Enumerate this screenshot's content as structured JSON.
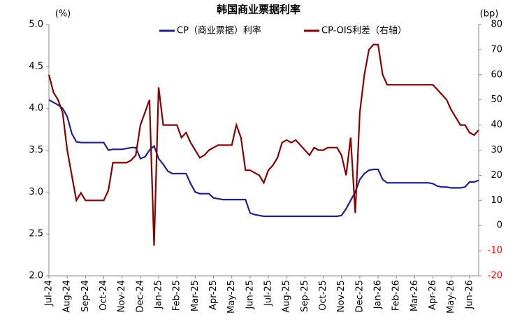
{
  "chart_data": {
    "type": "line",
    "title": "韩国商业票据利率",
    "y_unit": "(%)",
    "y2_unit": "(bp)",
    "x": [
      "Jul-24",
      null,
      null,
      null,
      "Aug-24",
      null,
      null,
      null,
      "Sep-24",
      null,
      null,
      null,
      "Oct-24",
      null,
      null,
      null,
      "Nov-24",
      null,
      null,
      null,
      "Dec-24",
      null,
      null,
      null,
      "Jan-25",
      null,
      null,
      null,
      "Feb-25",
      null,
      null,
      null,
      "Mar-25",
      null,
      null,
      null,
      "Apr-25",
      null,
      null,
      null,
      "May-25",
      null,
      null,
      null,
      "Jun-25",
      null,
      null,
      null,
      "Jul-25",
      null,
      null,
      null,
      "Aug-25",
      null,
      null,
      null,
      "Sep-25",
      null,
      null,
      null,
      "Oct-25",
      null,
      null,
      null,
      "Nov-25",
      null,
      null,
      null,
      "Dec-25",
      null,
      null,
      null,
      "Jan-26",
      null,
      null,
      null,
      "Feb-26",
      null,
      null,
      null,
      "Mar-26",
      null,
      null,
      null,
      "Apr-26",
      null,
      null,
      null,
      "May-26",
      null,
      null,
      null,
      "Jun-26",
      null,
      null
    ],
    "series": [
      {
        "name": "CP（商业票据）利率",
        "color": "#1f1f96",
        "axis": "y",
        "values": [
          4.1,
          4.07,
          4.04,
          4.0,
          3.9,
          3.7,
          3.6,
          3.59,
          3.59,
          3.59,
          3.59,
          3.59,
          3.59,
          3.5,
          3.51,
          3.51,
          3.51,
          3.52,
          3.53,
          3.53,
          3.4,
          3.42,
          3.5,
          3.55,
          3.4,
          3.33,
          3.25,
          3.22,
          3.22,
          3.22,
          3.22,
          3.1,
          3.0,
          2.98,
          2.98,
          2.98,
          2.93,
          2.92,
          2.91,
          2.91,
          2.91,
          2.91,
          2.91,
          2.91,
          2.75,
          2.73,
          2.72,
          2.71,
          2.71,
          2.71,
          2.71,
          2.71,
          2.71,
          2.71,
          2.71,
          2.71,
          2.71,
          2.71,
          2.71,
          2.71,
          2.71,
          2.71,
          2.71,
          2.71,
          2.72,
          2.8,
          2.9,
          3.0,
          3.15,
          3.22,
          3.26,
          3.27,
          3.27,
          3.15,
          3.11,
          3.11,
          3.11,
          3.11,
          3.11,
          3.11,
          3.11,
          3.11,
          3.11,
          3.11,
          3.1,
          3.07,
          3.06,
          3.06,
          3.05,
          3.05,
          3.05,
          3.06,
          3.12,
          3.12,
          3.14
        ]
      },
      {
        "name": "CP-OIS利差（右轴）",
        "color": "#8b0000",
        "axis": "y2",
        "values": [
          60,
          53,
          50,
          45,
          30,
          20,
          10,
          13,
          10,
          10,
          10,
          10,
          10,
          14,
          25,
          25,
          25,
          25,
          26,
          28,
          40,
          45,
          50,
          -8,
          55,
          40,
          40,
          40,
          40,
          35,
          37,
          33,
          30,
          27,
          28,
          30,
          31,
          32,
          32,
          32,
          32,
          40,
          35,
          22,
          22,
          21,
          20,
          17,
          22,
          24,
          27,
          33,
          34,
          33,
          34,
          32,
          30,
          28,
          31,
          30,
          30,
          31,
          31,
          31,
          28,
          20,
          35,
          5,
          45,
          60,
          70,
          72,
          72,
          60,
          56,
          56,
          56,
          56,
          56,
          56,
          56,
          56,
          56,
          56,
          56,
          54,
          52,
          50,
          46,
          43,
          40,
          40,
          37,
          36,
          38
        ]
      }
    ],
    "ylim": [
      2,
      5
    ],
    "yticks": [
      {
        "value": 2,
        "label": "2.0"
      },
      2.5,
      {
        "value": 3,
        "label": "3.0"
      },
      3.5,
      {
        "value": 4,
        "label": "4.0"
      },
      4.5,
      {
        "value": 5,
        "label": "5.0"
      }
    ],
    "y2lim": [
      -20,
      80
    ],
    "y2ticks": [
      -20,
      -10,
      0,
      10,
      20,
      30,
      40,
      50,
      60,
      70,
      80
    ],
    "negative_tick_color": "#ff0000",
    "grid": false
  }
}
